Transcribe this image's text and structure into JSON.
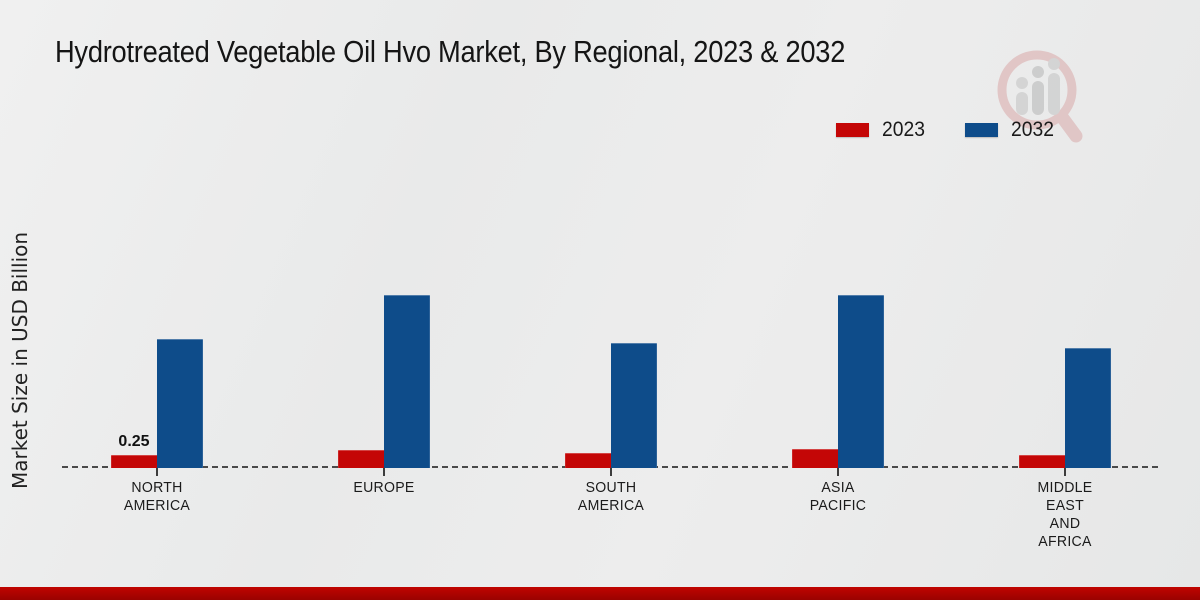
{
  "page": {
    "background": "#e9eaea",
    "accent_red": "#c40606",
    "accent_blue": "#0e4c8a",
    "footer_bar_color": "#b50300"
  },
  "title": "Hydrotreated Vegetable Oil Hvo Market, By Regional, 2023 & 2032",
  "y_axis_label": "Market Size in USD Billion",
  "legend": [
    {
      "label": "2023",
      "color": "#c40606"
    },
    {
      "label": "2032",
      "color": "#0e4c8a"
    }
  ],
  "watermark": "market-research-future-logo",
  "chart_data": {
    "type": "bar",
    "title": "Hydrotreated Vegetable Oil Hvo Market, By Regional, 2023 & 2032",
    "xlabel": "",
    "ylabel": "Market Size in USD Billion",
    "ylim": [
      0,
      3.6
    ],
    "grid": false,
    "legend_position": "top-right",
    "baseline_style": "dashed",
    "categories": [
      "NORTH\nAMERICA",
      "EUROPE",
      "SOUTH\nAMERICA",
      "ASIA\nPACIFIC",
      "MIDDLE\nEAST\nAND\nAFRICA"
    ],
    "series": [
      {
        "name": "2023",
        "color": "#c40606",
        "values": [
          0.25,
          0.35,
          0.29,
          0.36,
          0.25
        ]
      },
      {
        "name": "2032",
        "color": "#0e4c8a",
        "values": [
          2.48,
          3.33,
          2.4,
          3.33,
          2.31
        ]
      }
    ],
    "annotations": [
      {
        "series": "2023",
        "category_index": 0,
        "text": "0.25"
      }
    ]
  }
}
